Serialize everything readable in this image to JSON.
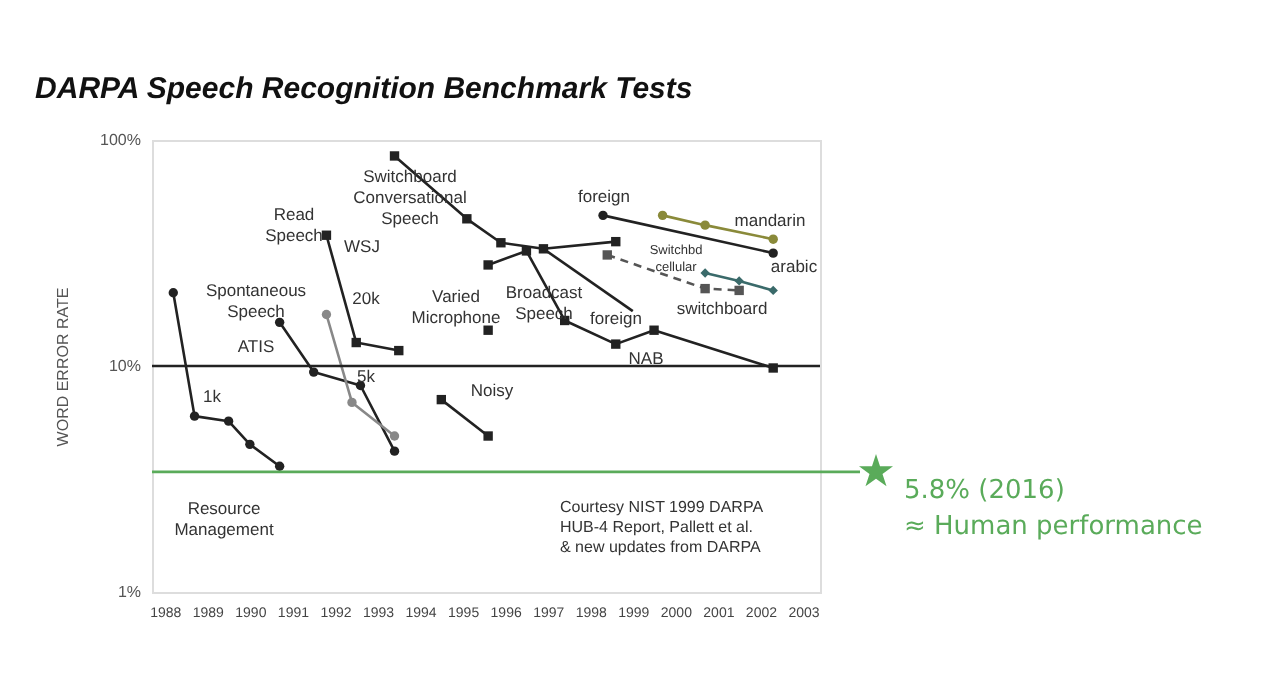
{
  "chart_data": {
    "type": "line",
    "title": "DARPA Speech Recognition Benchmark Tests",
    "ylabel": "WORD ERROR RATE",
    "log": "y",
    "grid": false,
    "xlim": [
      1987.7,
      2003.4
    ],
    "xticks": [
      1988,
      1989,
      1990,
      1991,
      1992,
      1993,
      1994,
      1995,
      1996,
      1997,
      1998,
      1999,
      2000,
      2001,
      2002,
      2003
    ],
    "ylim": [
      1,
      100
    ],
    "yticks": [
      {
        "value": 1,
        "label": "1%"
      },
      {
        "value": 10,
        "label": "10%"
      },
      {
        "value": 100,
        "label": "100%"
      }
    ],
    "series": [
      {
        "color": "#222222",
        "marker": "circle",
        "line_style": "solid",
        "x": [
          1988.2,
          1988.7,
          1989.5,
          1990.0,
          1990.7
        ],
        "values": [
          21.1,
          6.0,
          5.7,
          4.5,
          3.6
        ]
      },
      {
        "color": "#222222",
        "marker": "circle",
        "line_style": "solid",
        "x": [
          1990.7,
          1991.5,
          1992.6,
          1993.4
        ],
        "values": [
          15.6,
          9.4,
          8.2,
          4.2
        ]
      },
      {
        "color": "#888888",
        "marker": "circle",
        "line_style": "solid",
        "x": [
          1991.8,
          1992.4,
          1993.4
        ],
        "values": [
          16.9,
          6.9,
          4.9
        ]
      },
      {
        "color": "#222222",
        "marker": "square",
        "line_style": "solid",
        "x": [
          1991.8,
          1992.5,
          1993.5
        ],
        "values": [
          37.9,
          12.7,
          11.7
        ]
      },
      {
        "color": "#222222",
        "marker": "square",
        "line_style": "solid",
        "x": [
          1993.4,
          1995.1,
          1995.9,
          1996.9,
          1998.6
        ],
        "values": [
          85.0,
          44.8,
          35.1,
          33.0,
          35.5
        ]
      },
      {
        "color": "#222222",
        "marker": "none",
        "line_style": "solid",
        "x": [
          1996.9,
          1999.0
        ],
        "values": [
          33.0,
          17.5
        ]
      },
      {
        "color": "#222222",
        "marker": "square",
        "line_style": "solid",
        "x": [
          1995.6,
          1996.5,
          1997.4,
          1998.6,
          1999.5,
          2002.3
        ],
        "values": [
          28.0,
          32.3,
          15.9,
          12.5,
          14.4,
          9.8
        ]
      },
      {
        "type": "scatter",
        "color": "#222222",
        "marker": "square",
        "x": [
          1995.6
        ],
        "values": [
          14.4
        ]
      },
      {
        "color": "#222222",
        "marker": "square",
        "line_style": "solid",
        "x": [
          1994.5,
          1995.6
        ],
        "values": [
          7.1,
          4.9
        ]
      },
      {
        "color": "#8a8a3a",
        "marker": "circle",
        "line_style": "solid",
        "x": [
          1999.7,
          2000.7,
          2002.3
        ],
        "values": [
          46.4,
          42.0,
          36.4
        ]
      },
      {
        "color": "#222222",
        "marker": "circle",
        "line_style": "solid",
        "x": [
          1998.3,
          2002.3
        ],
        "values": [
          46.4,
          31.6
        ]
      },
      {
        "color": "#3a6a6a",
        "marker": "diamond",
        "line_style": "solid",
        "x": [
          2000.7,
          2001.5,
          2002.3
        ],
        "values": [
          25.8,
          23.8,
          21.6
        ]
      },
      {
        "color": "#555555",
        "marker": "square",
        "line_style": "dashed",
        "x": [
          1998.4,
          2000.7,
          2001.5
        ],
        "values": [
          31.0,
          22.0,
          21.6
        ]
      }
    ],
    "ref_lines": [
      {
        "axis": "y",
        "value": 10,
        "color": "#222222"
      },
      {
        "axis": "y",
        "value": 3.4,
        "color": "#5aab5a",
        "label": "5.8% (2016)\n≈ Human performance"
      }
    ],
    "annotations": [
      "Switchboard\nConversational\nSpeech",
      "Read\nSpeech",
      "WSJ",
      "20k",
      "Spontaneous\nSpeech",
      "ATIS",
      "1k",
      "5k",
      "Resource\nManagement",
      "Varied\nMicrophone",
      "Noisy",
      "Broadcast\nSpeech",
      "foreign",
      "foreign",
      "NAB",
      "mandarin",
      "arabic",
      "Switchbd\ncellular",
      "switchboard",
      "Courtesy NIST 1999 DARPA\nHUB-4 Report, Pallett et al.\n& new updates from DARPA"
    ]
  }
}
